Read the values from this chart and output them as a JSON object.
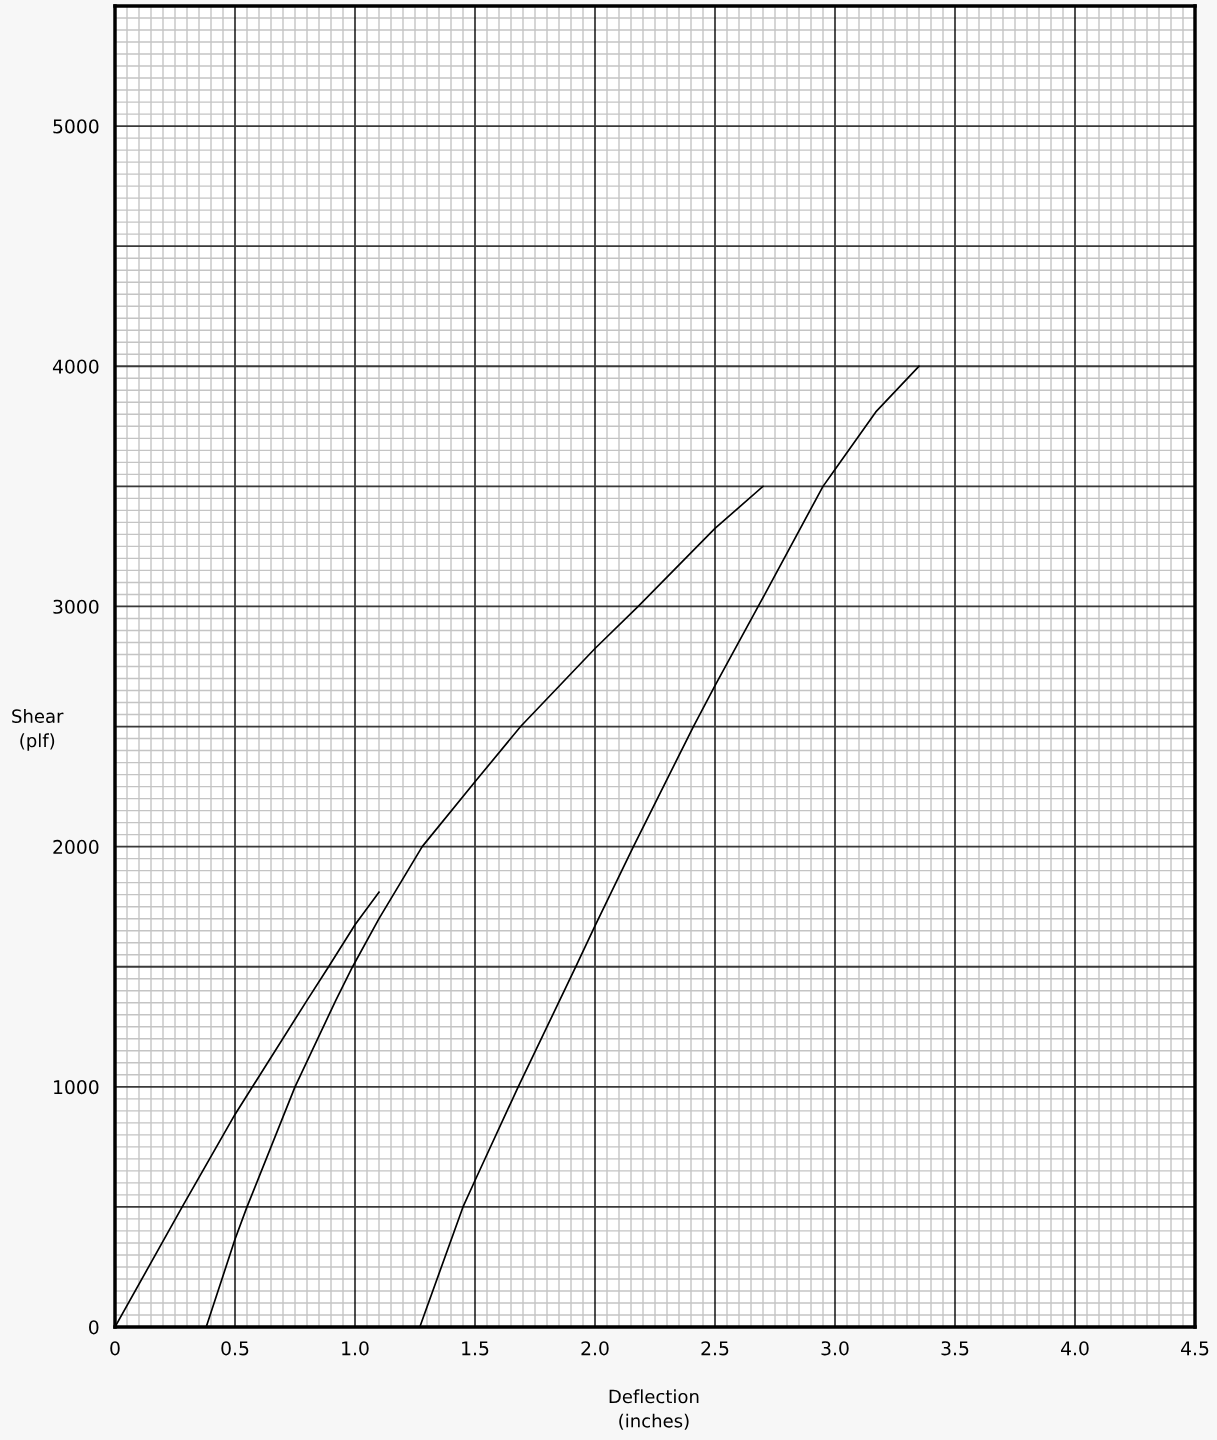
{
  "chart_data": {
    "type": "line",
    "xlabel": "Deflection\n(inches)",
    "ylabel": "Shear\n(plf)",
    "xlim": [
      0,
      4.5
    ],
    "ylim": [
      0,
      5500
    ],
    "xticks": [
      0,
      0.5,
      {
        "value": 1,
        "label": "1.0"
      },
      1.5,
      {
        "value": 2,
        "label": "2.0"
      },
      2.5,
      {
        "value": 3,
        "label": "3.0"
      },
      3.5,
      {
        "value": 4,
        "label": "4.0"
      },
      4.5
    ],
    "yticks": [
      0,
      {
        "value": 500,
        "label": null
      },
      1000,
      {
        "value": 1500,
        "label": null
      },
      2000,
      {
        "value": 2500,
        "label": null
      },
      3000,
      {
        "value": 3500,
        "label": null
      },
      4000,
      {
        "value": 4500,
        "label": null
      },
      5000,
      {
        "value": 5500,
        "label": null
      }
    ],
    "grid": true,
    "series": [
      {
        "color": "#000000",
        "x": [
          0,
          0.28,
          0.5,
          0.8,
          0.89,
          1.0,
          1.1
        ],
        "values": [
          0,
          500,
          885,
          1360,
          1500,
          1675,
          1810
        ]
      },
      {
        "color": "#000000",
        "x": [
          0.38,
          0.5,
          0.55,
          0.75,
          0.92,
          0.99,
          1.1,
          1.28,
          1.5,
          1.69,
          2.0,
          2.18,
          2.5,
          2.7
        ],
        "values": [
          0,
          365,
          500,
          1000,
          1360,
          1500,
          1700,
          2000,
          2270,
          2500,
          2825,
          3000,
          3325,
          3500
        ]
      },
      {
        "color": "#000000",
        "x": [
          1.27,
          1.45,
          1.5,
          1.68,
          1.92,
          2.0,
          2.16,
          2.41,
          2.5,
          2.68,
          2.95,
          3.0,
          3.17,
          3.35
        ],
        "values": [
          0,
          500,
          610,
          1000,
          1500,
          1670,
          2000,
          2500,
          2670,
          3000,
          3500,
          3570,
          3810,
          4000
        ]
      }
    ]
  }
}
